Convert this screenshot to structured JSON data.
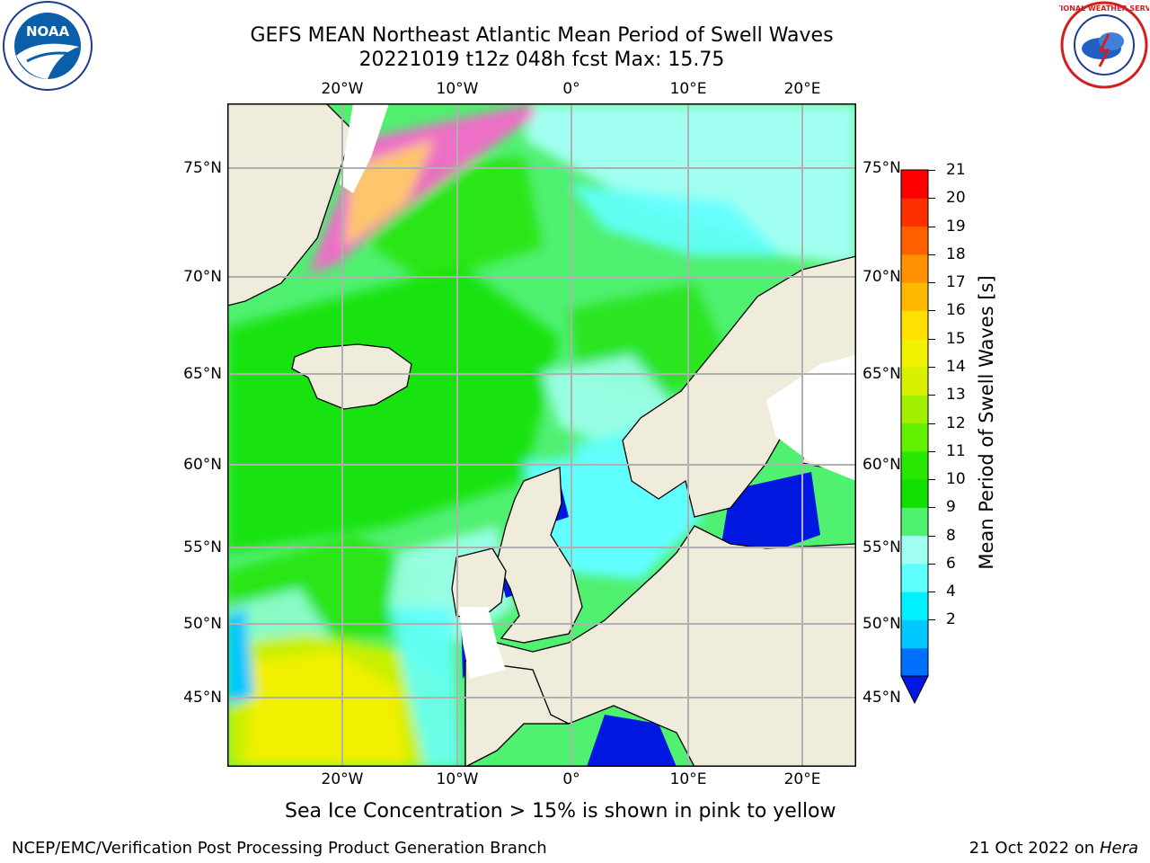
{
  "title": {
    "line1": "GEFS MEAN Northeast Atlantic Mean Period of Swell Waves",
    "line2": "20221019 t12z 048h fcst   Max: 15.75"
  },
  "logos": {
    "noaa": {
      "icon": "noaa-logo",
      "text": "NOAA"
    },
    "nws": {
      "icon": "nws-logo",
      "text": "NATIONAL WEATHER SERVICE"
    }
  },
  "map": {
    "lat_labels": [
      "75°N",
      "70°N",
      "65°N",
      "60°N",
      "55°N",
      "50°N",
      "45°N"
    ],
    "lon_labels": [
      "20°W",
      "10°W",
      "0°",
      "10°E",
      "20°E"
    ],
    "land_color": "#efecdc",
    "grid_color": "#b0b0b0"
  },
  "colorbar": {
    "label": "Mean Period of Swell Waves [s]",
    "ticks": [
      "21",
      "20",
      "19",
      "18",
      "17",
      "16",
      "15",
      "14",
      "13",
      "12",
      "11",
      "10",
      "9",
      "8",
      "6",
      "4",
      "2"
    ],
    "colors_bottom_to_top": [
      "#0070ff",
      "#00c8ff",
      "#00f0ff",
      "#60ffff",
      "#a0fff0",
      "#50f070",
      "#10e000",
      "#28e800",
      "#60f000",
      "#a0f000",
      "#d8f000",
      "#f0f000",
      "#ffe000",
      "#ffb800",
      "#ff9000",
      "#ff6000",
      "#ff3000",
      "#ff0000"
    ],
    "extend_color": "#0018e0"
  },
  "footer": {
    "note": "Sea Ice Concentration > 15% is shown in pink to yellow",
    "left": "NCEP/EMC/Verification Post Processing Product Generation Branch",
    "right_date": "21 Oct 2022 on ",
    "right_host": "Hera"
  }
}
